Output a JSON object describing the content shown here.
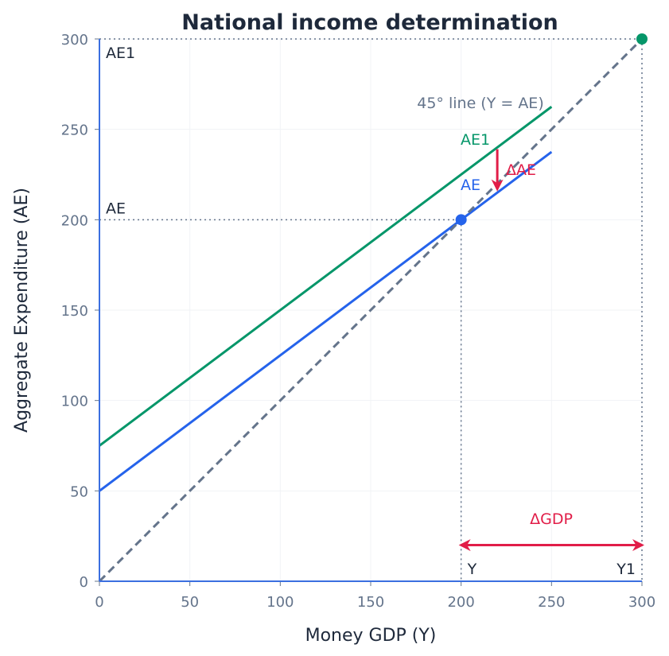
{
  "chart_data": {
    "type": "line",
    "title": "National income determination",
    "xlabel": "Money GDP (Y)",
    "ylabel": "Aggregate Expenditure (AE)",
    "xlim": [
      0,
      300
    ],
    "ylim": [
      0,
      300
    ],
    "xticks": [
      0,
      50,
      100,
      150,
      200,
      250,
      300
    ],
    "yticks": [
      0,
      50,
      100,
      150,
      200,
      250,
      300
    ],
    "grid": true,
    "series": [
      {
        "name": "AE1",
        "color": "#059669",
        "x": [
          0,
          250
        ],
        "y": [
          75,
          262.5
        ],
        "style": "solid"
      },
      {
        "name": "AE",
        "color": "#2563eb",
        "x": [
          0,
          250
        ],
        "y": [
          50,
          237.5
        ],
        "style": "solid"
      },
      {
        "name": "45° line (Y = AE)",
        "color": "#64748b",
        "x": [
          0,
          300
        ],
        "y": [
          0,
          300
        ],
        "style": "dashed"
      }
    ],
    "points": [
      {
        "x": 200,
        "y": 200,
        "color": "#2563eb"
      },
      {
        "x": 300,
        "y": 300,
        "color": "#059669"
      }
    ],
    "axis_labels": {
      "y_200": "AE",
      "y_300": "AE1",
      "x_200": "Y",
      "x_300": "Y1"
    },
    "annotations": [
      {
        "text": "ΔAE",
        "color": "#e11d48",
        "arrow_from": [
          220,
          239
        ],
        "arrow_to": [
          220,
          217
        ]
      },
      {
        "text": "ΔGDP",
        "color": "#e11d48",
        "arrow_from": [
          200,
          20
        ],
        "arrow_to": [
          300,
          20
        ],
        "double": true
      }
    ],
    "axis_color": "#3b6fe0"
  }
}
